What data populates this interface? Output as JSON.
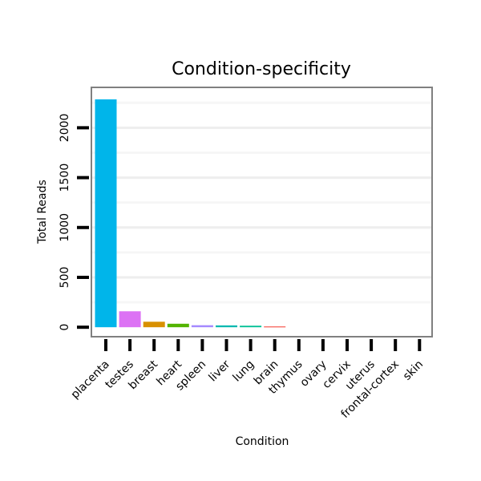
{
  "chart_data": {
    "type": "bar",
    "title": "Condition-specificity",
    "xlabel": "Condition",
    "ylabel": "Total Reads",
    "categories": [
      "placenta",
      "testes",
      "breast",
      "heart",
      "spleen",
      "liver",
      "lung",
      "brain",
      "thymus",
      "ovary",
      "cervix",
      "uterus",
      "frontal-cortex",
      "skin"
    ],
    "values": [
      2285,
      160,
      55,
      35,
      20,
      18,
      15,
      10,
      0,
      0,
      0,
      0,
      0,
      0
    ],
    "colors": [
      "#00b5ea",
      "#dc72f4",
      "#d89000",
      "#53b400",
      "#a58aff",
      "#00b8b0",
      "#00c094",
      "#f8766d",
      "#ffffff",
      "#ffffff",
      "#ffffff",
      "#ffffff",
      "#ffffff",
      "#ffffff"
    ],
    "yticks": [
      0,
      500,
      1000,
      1500,
      2000
    ],
    "ylim": [
      -95,
      2405
    ],
    "grid": true,
    "legend": "none"
  }
}
